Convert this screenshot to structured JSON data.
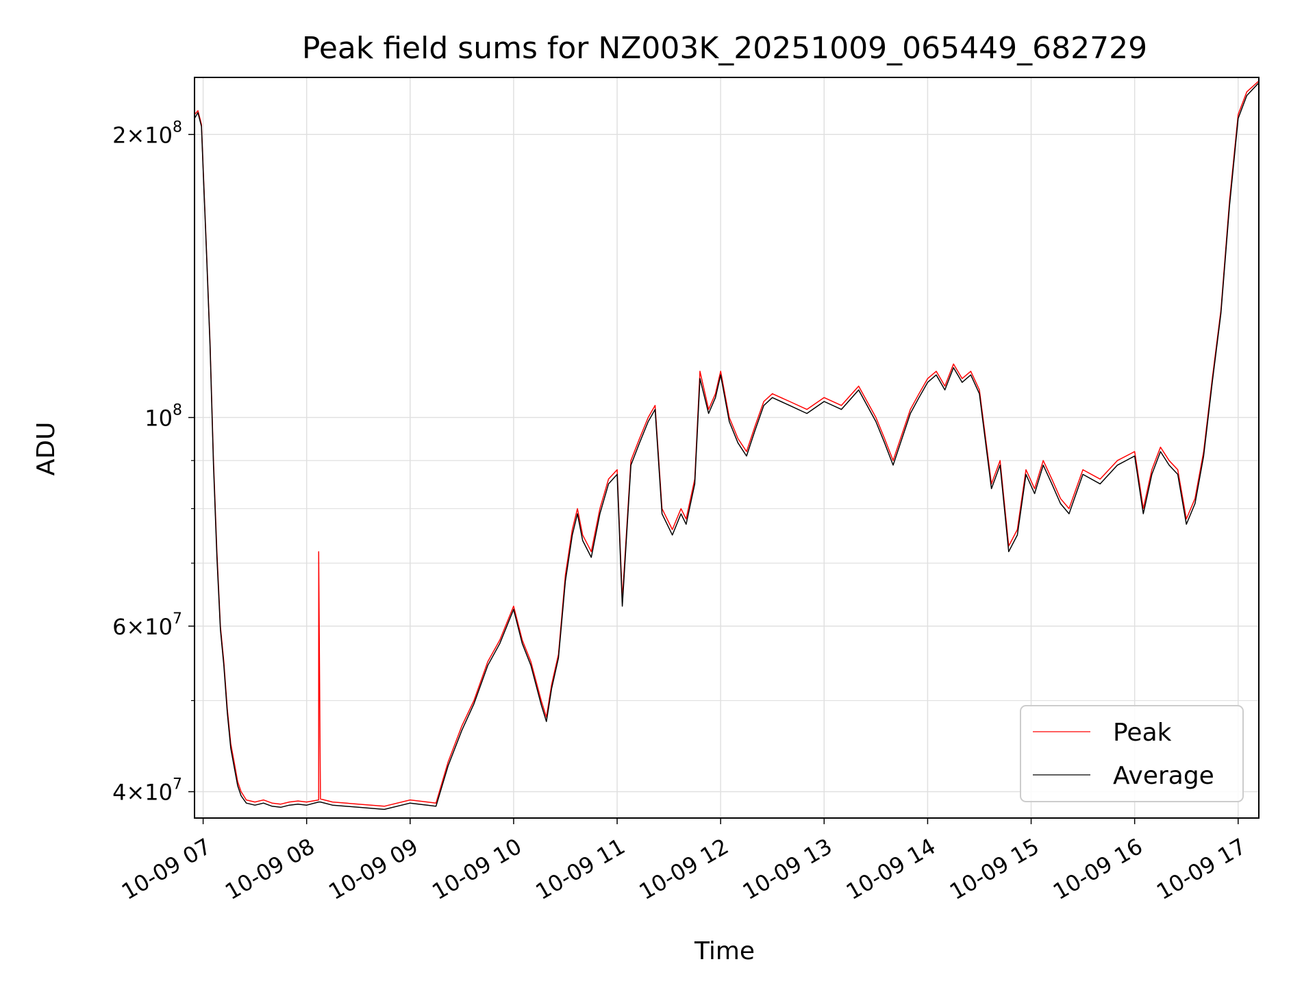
{
  "chart_data": {
    "type": "line",
    "title": "Peak field sums for NZ003K_20251009_065449_682729",
    "xlabel": "Time",
    "ylabel": "ADU",
    "x_axis": "datetime",
    "y_scale": "log",
    "xlim": [
      "10-09 06:55",
      "10-09 17:12"
    ],
    "ylim": [
      37500000,
      230000000
    ],
    "x_ticks": [
      "10-09 07",
      "10-09 08",
      "10-09 09",
      "10-09 10",
      "10-09 11",
      "10-09 12",
      "10-09 13",
      "10-09 14",
      "10-09 15",
      "10-09 16",
      "10-09 17"
    ],
    "y_ticks": [
      {
        "value": 40000000,
        "mantissa": "4",
        "exp": "7"
      },
      {
        "value": 60000000,
        "mantissa": "6",
        "exp": "7"
      },
      {
        "value": 100000000,
        "mantissa": "",
        "exp": "8"
      },
      {
        "value": 200000000,
        "mantissa": "2",
        "exp": "8"
      }
    ],
    "y_minor_ticks": [
      50000000,
      70000000,
      80000000,
      90000000
    ],
    "grid": true,
    "legend": {
      "position": "bottom-right",
      "entries": [
        "Peak",
        "Average"
      ]
    },
    "series": [
      {
        "name": "Peak",
        "color": "#ff0000",
        "x": [
          "06:55",
          "06:57",
          "06:59",
          "07:02",
          "07:04",
          "07:06",
          "07:08",
          "07:10",
          "07:12",
          "07:14",
          "07:16",
          "07:18",
          "07:20",
          "07:22",
          "07:25",
          "07:30",
          "07:35",
          "07:40",
          "07:45",
          "07:50",
          "07:55",
          "08:00",
          "08:07",
          "08:07",
          "08:08",
          "08:15",
          "08:30",
          "08:45",
          "09:00",
          "09:10",
          "09:15",
          "09:22",
          "09:30",
          "09:37",
          "09:45",
          "09:52",
          "10:00",
          "10:05",
          "10:10",
          "10:16",
          "10:19",
          "10:22",
          "10:26",
          "10:30",
          "10:34",
          "10:37",
          "10:40",
          "10:45",
          "10:50",
          "10:55",
          "11:00",
          "11:03",
          "11:08",
          "11:13",
          "11:18",
          "11:22",
          "11:26",
          "11:32",
          "11:37",
          "11:40",
          "11:45",
          "11:48",
          "11:53",
          "11:57",
          "12:00",
          "12:05",
          "12:10",
          "12:15",
          "12:20",
          "12:25",
          "12:30",
          "12:40",
          "12:50",
          "13:00",
          "13:10",
          "13:20",
          "13:30",
          "13:35",
          "13:40",
          "13:50",
          "13:55",
          "14:00",
          "14:05",
          "14:10",
          "14:15",
          "14:20",
          "14:25",
          "14:30",
          "14:37",
          "14:42",
          "14:47",
          "14:52",
          "14:57",
          "15:02",
          "15:07",
          "15:12",
          "15:17",
          "15:22",
          "15:30",
          "15:40",
          "15:50",
          "16:00",
          "16:05",
          "16:10",
          "16:15",
          "16:20",
          "16:25",
          "16:30",
          "16:35",
          "16:40",
          "16:45",
          "16:50",
          "16:55",
          "17:00",
          "17:05",
          "17:12"
        ],
        "y": [
          210000000,
          212000000,
          205000000,
          150000000,
          120000000,
          90000000,
          72000000,
          60000000,
          55000000,
          49000000,
          45000000,
          43000000,
          41000000,
          40000000,
          39200000,
          39000000,
          39200000,
          38900000,
          38800000,
          39000000,
          39100000,
          39000000,
          39200000,
          72000000,
          39300000,
          39000000,
          38800000,
          38600000,
          39200000,
          39000000,
          38900000,
          43000000,
          47000000,
          50000000,
          55000000,
          58000000,
          63000000,
          58000000,
          55000000,
          50000000,
          48000000,
          52000000,
          56000000,
          68000000,
          76000000,
          80000000,
          75000000,
          72000000,
          80000000,
          86000000,
          88000000,
          64000000,
          90000000,
          95000000,
          100000000,
          103000000,
          80000000,
          76000000,
          80000000,
          78000000,
          86000000,
          112000000,
          102000000,
          106000000,
          112000000,
          100000000,
          95000000,
          92000000,
          98000000,
          104000000,
          106000000,
          104000000,
          102000000,
          105000000,
          103000000,
          108000000,
          100000000,
          95000000,
          90000000,
          102000000,
          106000000,
          110000000,
          112000000,
          108000000,
          114000000,
          110000000,
          112000000,
          107000000,
          85000000,
          90000000,
          73000000,
          76000000,
          88000000,
          84000000,
          90000000,
          86000000,
          82000000,
          80000000,
          88000000,
          86000000,
          90000000,
          92000000,
          80000000,
          88000000,
          93000000,
          90000000,
          88000000,
          78000000,
          82000000,
          92000000,
          110000000,
          130000000,
          170000000,
          210000000,
          222000000,
          228000000
        ]
      },
      {
        "name": "Average",
        "color": "#000000",
        "x": [
          "06:55",
          "06:57",
          "06:59",
          "07:02",
          "07:04",
          "07:06",
          "07:08",
          "07:10",
          "07:12",
          "07:14",
          "07:16",
          "07:18",
          "07:20",
          "07:22",
          "07:25",
          "07:30",
          "07:35",
          "07:40",
          "07:45",
          "07:50",
          "07:55",
          "08:00",
          "08:07",
          "08:08",
          "08:15",
          "08:30",
          "08:45",
          "09:00",
          "09:10",
          "09:15",
          "09:22",
          "09:30",
          "09:37",
          "09:45",
          "09:52",
          "10:00",
          "10:05",
          "10:10",
          "10:16",
          "10:19",
          "10:22",
          "10:26",
          "10:30",
          "10:34",
          "10:37",
          "10:40",
          "10:45",
          "10:50",
          "10:55",
          "11:00",
          "11:03",
          "11:08",
          "11:13",
          "11:18",
          "11:22",
          "11:26",
          "11:32",
          "11:37",
          "11:40",
          "11:45",
          "11:48",
          "11:53",
          "11:57",
          "12:00",
          "12:05",
          "12:10",
          "12:15",
          "12:20",
          "12:25",
          "12:30",
          "12:40",
          "12:50",
          "13:00",
          "13:10",
          "13:20",
          "13:30",
          "13:35",
          "13:40",
          "13:50",
          "13:55",
          "14:00",
          "14:05",
          "14:10",
          "14:15",
          "14:20",
          "14:25",
          "14:30",
          "14:37",
          "14:42",
          "14:47",
          "14:52",
          "14:57",
          "15:02",
          "15:07",
          "15:12",
          "15:17",
          "15:22",
          "15:30",
          "15:40",
          "15:50",
          "16:00",
          "16:05",
          "16:10",
          "16:15",
          "16:20",
          "16:25",
          "16:30",
          "16:35",
          "16:40",
          "16:45",
          "16:50",
          "16:55",
          "17:00",
          "17:05",
          "17:12"
        ],
        "y": [
          208000000,
          211000000,
          204000000,
          149000000,
          119000000,
          89000000,
          71000000,
          59500000,
          54500000,
          48500000,
          44500000,
          42500000,
          40600000,
          39600000,
          38900000,
          38700000,
          38900000,
          38600000,
          38500000,
          38700000,
          38800000,
          38700000,
          39000000,
          39000000,
          38700000,
          38500000,
          38300000,
          38900000,
          38700000,
          38600000,
          42600000,
          46500000,
          49600000,
          54500000,
          57500000,
          62500000,
          57500000,
          54500000,
          49500000,
          47500000,
          51500000,
          55500000,
          67000000,
          75000000,
          79000000,
          74000000,
          71000000,
          79000000,
          85000000,
          87000000,
          63000000,
          89000000,
          94000000,
          99000000,
          102000000,
          79000000,
          75000000,
          79000000,
          77000000,
          85000000,
          110000000,
          101000000,
          105000000,
          111000000,
          99000000,
          94000000,
          91000000,
          97000000,
          103000000,
          105000000,
          103000000,
          101000000,
          104000000,
          102000000,
          107000000,
          99000000,
          94000000,
          89000000,
          101000000,
          105000000,
          109000000,
          111000000,
          107000000,
          113000000,
          109000000,
          111000000,
          106000000,
          84000000,
          89000000,
          72000000,
          75000000,
          87000000,
          83000000,
          89000000,
          85000000,
          81000000,
          79000000,
          87000000,
          85000000,
          89000000,
          91000000,
          79000000,
          87000000,
          92000000,
          89000000,
          87000000,
          77000000,
          81000000,
          91000000,
          109000000,
          129000000,
          168000000,
          208000000,
          220000000,
          227000000
        ]
      }
    ]
  }
}
